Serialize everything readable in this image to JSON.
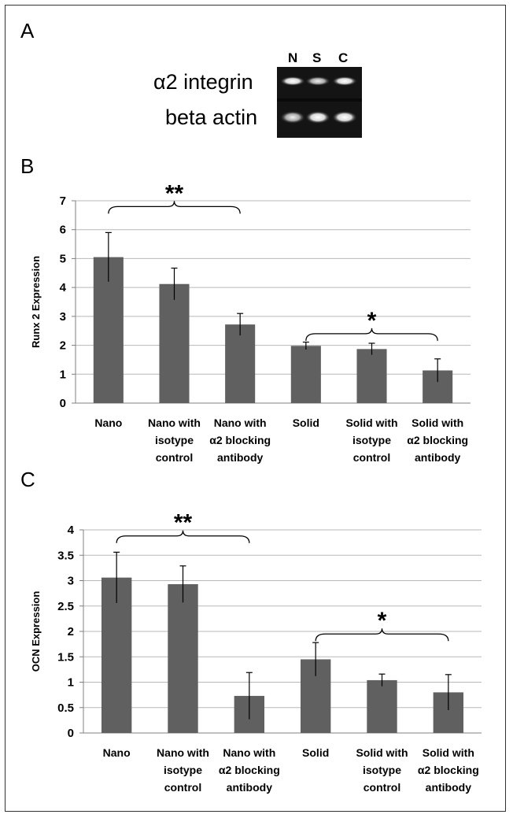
{
  "panels": {
    "a_label": "A",
    "b_label": "B",
    "c_label": "C"
  },
  "gel": {
    "lanes": [
      "N",
      "S",
      "C"
    ],
    "rows": [
      "α2 integrin",
      "beta actin"
    ]
  },
  "chart_data": [
    {
      "type": "bar",
      "ylabel": "Runx 2 Expression",
      "ylim": [
        0,
        7
      ],
      "yticks": [
        0,
        1,
        2,
        3,
        4,
        5,
        6,
        7
      ],
      "grid": true,
      "categories": [
        [
          "Nano"
        ],
        [
          "Nano with",
          "isotype",
          "control"
        ],
        [
          "Nano with",
          "α2 blocking",
          "antibody"
        ],
        [
          "Solid"
        ],
        [
          "Solid with",
          "isotype",
          "control"
        ],
        [
          "Solid with",
          "α2 blocking",
          "antibody"
        ]
      ],
      "values": [
        5.05,
        4.12,
        2.72,
        1.98,
        1.87,
        1.13
      ],
      "errors": [
        0.85,
        0.55,
        0.38,
        0.13,
        0.2,
        0.4
      ],
      "bar_color": "#606060",
      "annotations": [
        {
          "text": "**",
          "from": 0,
          "to": 2,
          "y": 6.8
        },
        {
          "text": "*",
          "from": 3,
          "to": 5,
          "y": 2.4
        }
      ]
    },
    {
      "type": "bar",
      "ylabel": "OCN Expression",
      "ylim": [
        0,
        4
      ],
      "yticks": [
        0,
        0.5,
        1,
        1.5,
        2,
        2.5,
        3,
        3.5,
        4
      ],
      "grid": true,
      "categories": [
        [
          "Nano"
        ],
        [
          "Nano with",
          "isotype",
          "control"
        ],
        [
          "Nano with",
          "α2 blocking",
          "antibody"
        ],
        [
          "Solid"
        ],
        [
          "Solid with",
          "isotype",
          "control"
        ],
        [
          "Solid with",
          "α2 blocking",
          "antibody"
        ]
      ],
      "values": [
        3.06,
        2.93,
        0.73,
        1.45,
        1.04,
        0.8
      ],
      "errors": [
        0.5,
        0.36,
        0.46,
        0.33,
        0.12,
        0.35
      ],
      "bar_color": "#606060",
      "annotations": [
        {
          "text": "**",
          "from": 0,
          "to": 2,
          "y": 3.88
        },
        {
          "text": "*",
          "from": 3,
          "to": 5,
          "y": 1.95
        }
      ]
    }
  ]
}
